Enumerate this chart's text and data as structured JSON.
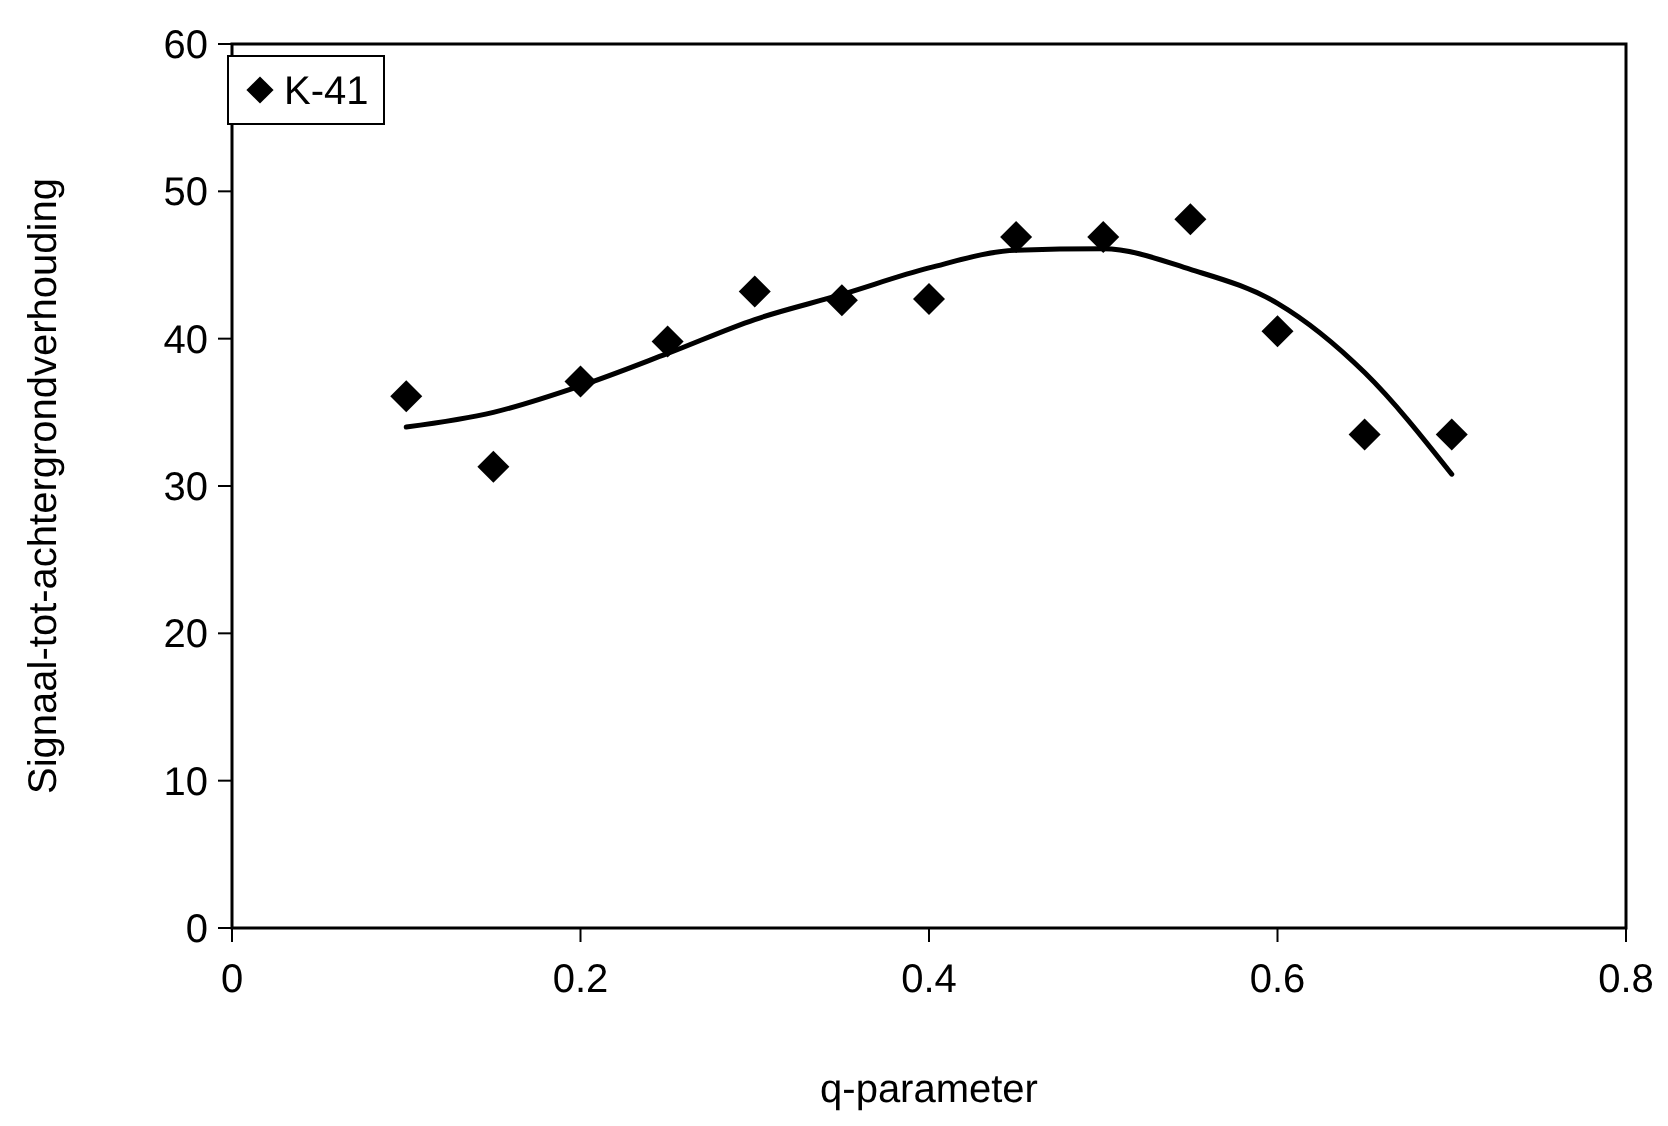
{
  "chart_data": {
    "type": "scatter",
    "xlabel": "q-parameter",
    "ylabel": "Signaal-tot-achtergrondverhouding",
    "xlim": [
      0,
      0.8
    ],
    "xticks": [
      0,
      0.2,
      0.4,
      0.6,
      0.8
    ],
    "ylim": [
      0,
      60
    ],
    "yticks": [
      0,
      10,
      20,
      30,
      40,
      50,
      60
    ],
    "grid": false,
    "legend": "top left",
    "series": [
      {
        "name": "K-41",
        "marker": "diamond",
        "color": "#000000",
        "x": [
          0.1,
          0.15,
          0.2,
          0.25,
          0.3,
          0.35,
          0.4,
          0.45,
          0.5,
          0.55,
          0.6,
          0.65,
          0.7
        ],
        "values": [
          36.1,
          31.3,
          37.1,
          39.8,
          43.2,
          42.6,
          42.7,
          46.9,
          46.9,
          48.1,
          40.5,
          33.5,
          33.5
        ]
      },
      {
        "type": "line",
        "marker": "none",
        "line_style": "solid",
        "color": "#000000",
        "x": [
          0.1,
          0.15,
          0.2,
          0.25,
          0.3,
          0.35,
          0.4,
          0.45,
          0.5,
          0.55,
          0.6,
          0.65,
          0.7
        ],
        "values": [
          34.0,
          35.0,
          36.8,
          39.0,
          41.3,
          43.0,
          44.8,
          46.0,
          46.1,
          44.7,
          42.4,
          37.7,
          30.8
        ]
      }
    ]
  }
}
